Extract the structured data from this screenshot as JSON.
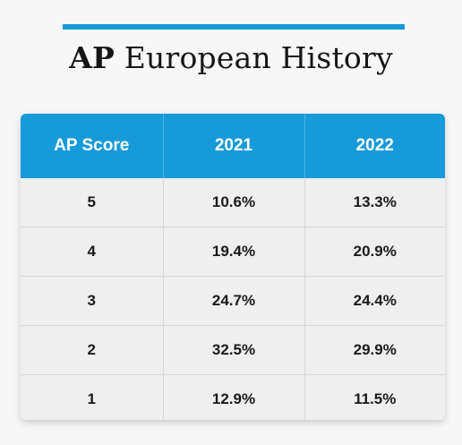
{
  "title": {
    "accent": "AP",
    "rest": " European History"
  },
  "table": {
    "headers": [
      "AP Score",
      "2021",
      "2022"
    ],
    "rows": [
      [
        "5",
        "10.6%",
        "13.3%"
      ],
      [
        "4",
        "19.4%",
        "20.9%"
      ],
      [
        "3",
        "24.7%",
        "24.4%"
      ],
      [
        "2",
        "32.5%",
        "29.9%"
      ],
      [
        "1",
        "12.9%",
        "11.5%"
      ]
    ]
  },
  "colors": {
    "accent": "#169ad9",
    "background": "#f7f7f8",
    "row_background": "#efefef"
  }
}
